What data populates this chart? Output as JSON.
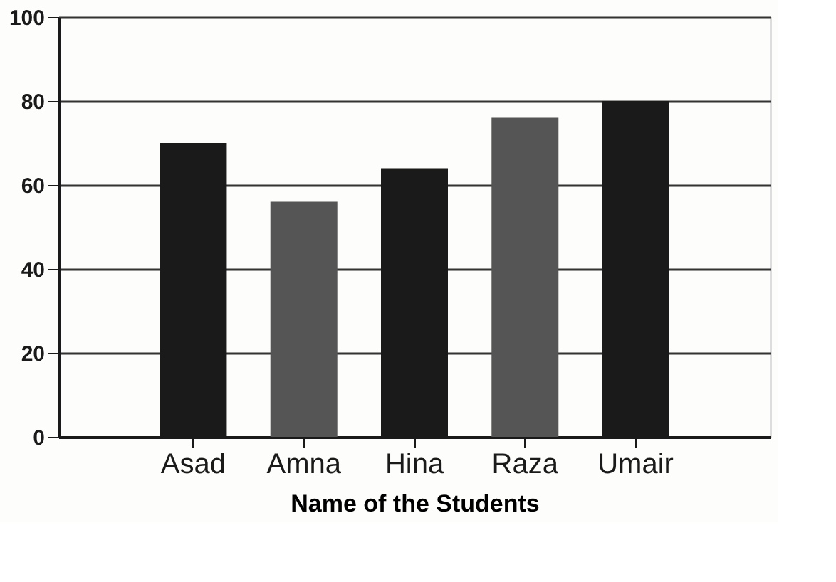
{
  "chart_data": {
    "type": "bar",
    "xlabel": "Name of the Students",
    "categories": [
      "Asad",
      "Amna",
      "Hina",
      "Raza",
      "Umair"
    ],
    "values": [
      70,
      56,
      64,
      76,
      80
    ],
    "colors": [
      "#1a1a1a",
      "#555555",
      "#1a1a1a",
      "#555555",
      "#1a1a1a"
    ],
    "ylim": [
      0,
      100
    ],
    "yticks": [
      0,
      20,
      40,
      60,
      80,
      100
    ],
    "grid": "y"
  }
}
